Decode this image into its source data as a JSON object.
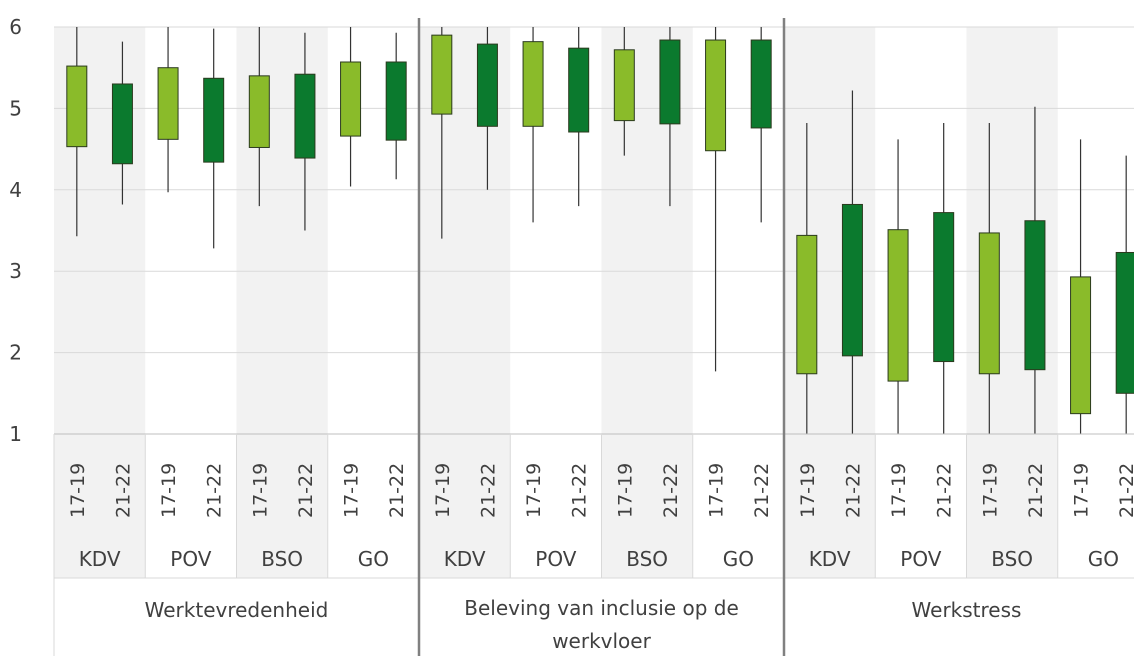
{
  "chart_data": {
    "type": "boxplot",
    "ylim": [
      1,
      6
    ],
    "yticks": [
      1,
      2,
      3,
      4,
      5,
      6
    ],
    "grid": true,
    "colors": {
      "17-19": "#8ABB2A",
      "21-22": "#0B7A2E",
      "shade": "#F2F2F2",
      "grid": "#D9D9D9",
      "whisker": "#333333",
      "divider": "#808080"
    },
    "panels": [
      {
        "title": "Werktevredenheid",
        "groups": [
          {
            "name": "KDV",
            "boxes": [
              {
                "period": "17-19",
                "min": 3.43,
                "q1": 4.53,
                "q3": 5.52,
                "max": 6.0
              },
              {
                "period": "21-22",
                "min": 3.82,
                "q1": 4.32,
                "q3": 5.3,
                "max": 5.82
              }
            ]
          },
          {
            "name": "POV",
            "boxes": [
              {
                "period": "17-19",
                "min": 3.97,
                "q1": 4.62,
                "q3": 5.5,
                "max": 6.0
              },
              {
                "period": "21-22",
                "min": 3.28,
                "q1": 4.34,
                "q3": 5.37,
                "max": 5.98
              }
            ]
          },
          {
            "name": "BSO",
            "boxes": [
              {
                "period": "17-19",
                "min": 3.8,
                "q1": 4.52,
                "q3": 5.4,
                "max": 6.0
              },
              {
                "period": "21-22",
                "min": 3.5,
                "q1": 4.39,
                "q3": 5.42,
                "max": 5.93
              }
            ]
          },
          {
            "name": "GO",
            "boxes": [
              {
                "period": "17-19",
                "min": 4.04,
                "q1": 4.66,
                "q3": 5.57,
                "max": 6.0
              },
              {
                "period": "21-22",
                "min": 4.13,
                "q1": 4.61,
                "q3": 5.57,
                "max": 5.93
              }
            ]
          }
        ]
      },
      {
        "title": "Beleving van inclusie op de werkvloer",
        "groups": [
          {
            "name": "KDV",
            "boxes": [
              {
                "period": "17-19",
                "min": 3.4,
                "q1": 4.93,
                "q3": 5.9,
                "max": 6.0
              },
              {
                "period": "21-22",
                "min": 4.0,
                "q1": 4.78,
                "q3": 5.79,
                "max": 6.0
              }
            ]
          },
          {
            "name": "POV",
            "boxes": [
              {
                "period": "17-19",
                "min": 3.6,
                "q1": 4.78,
                "q3": 5.82,
                "max": 6.0
              },
              {
                "period": "21-22",
                "min": 3.8,
                "q1": 4.71,
                "q3": 5.74,
                "max": 6.0
              }
            ]
          },
          {
            "name": "BSO",
            "boxes": [
              {
                "period": "17-19",
                "min": 4.42,
                "q1": 4.85,
                "q3": 5.72,
                "max": 6.0
              },
              {
                "period": "21-22",
                "min": 3.8,
                "q1": 4.81,
                "q3": 5.84,
                "max": 6.0
              }
            ]
          },
          {
            "name": "GO",
            "boxes": [
              {
                "period": "17-19",
                "min": 1.77,
                "q1": 4.48,
                "q3": 5.84,
                "max": 6.0
              },
              {
                "period": "21-22",
                "min": 3.6,
                "q1": 4.76,
                "q3": 5.84,
                "max": 6.0
              }
            ]
          }
        ]
      },
      {
        "title": "Werkstress",
        "groups": [
          {
            "name": "KDV",
            "boxes": [
              {
                "period": "17-19",
                "min": 1.0,
                "q1": 1.74,
                "q3": 3.44,
                "max": 4.82
              },
              {
                "period": "21-22",
                "min": 1.0,
                "q1": 1.96,
                "q3": 3.82,
                "max": 5.22
              }
            ]
          },
          {
            "name": "POV",
            "boxes": [
              {
                "period": "17-19",
                "min": 1.0,
                "q1": 1.65,
                "q3": 3.51,
                "max": 4.62
              },
              {
                "period": "21-22",
                "min": 1.0,
                "q1": 1.89,
                "q3": 3.72,
                "max": 4.82
              }
            ]
          },
          {
            "name": "BSO",
            "boxes": [
              {
                "period": "17-19",
                "min": 1.0,
                "q1": 1.74,
                "q3": 3.47,
                "max": 4.82
              },
              {
                "period": "21-22",
                "min": 1.0,
                "q1": 1.79,
                "q3": 3.62,
                "max": 5.02
              }
            ]
          },
          {
            "name": "GO",
            "boxes": [
              {
                "period": "17-19",
                "min": 1.0,
                "q1": 1.25,
                "q3": 2.93,
                "max": 4.62
              },
              {
                "period": "21-22",
                "min": 1.0,
                "q1": 1.5,
                "q3": 3.23,
                "max": 4.42
              }
            ]
          }
        ]
      }
    ]
  }
}
